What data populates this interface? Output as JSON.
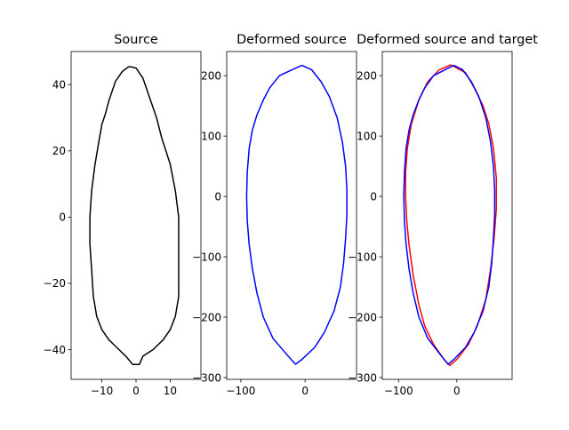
{
  "chart_data": [
    {
      "type": "line",
      "title": "Source",
      "xlim": [
        -19,
        19
      ],
      "ylim": [
        -49,
        50
      ],
      "xticks": [
        -10,
        0,
        10
      ],
      "yticks": [
        -40,
        -20,
        0,
        20,
        40
      ],
      "grid": false,
      "series": [
        {
          "color": "#000000",
          "points": [
            [
              -2,
              45.5
            ],
            [
              -4,
              44
            ],
            [
              -6,
              41
            ],
            [
              -8,
              35
            ],
            [
              -9,
              31
            ],
            [
              -10,
              28
            ],
            [
              -11,
              22
            ],
            [
              -12,
              16
            ],
            [
              -13,
              8
            ],
            [
              -13.5,
              0
            ],
            [
              -13.5,
              -8
            ],
            [
              -13,
              -16
            ],
            [
              -12.5,
              -24
            ],
            [
              -11.5,
              -30
            ],
            [
              -10,
              -34
            ],
            [
              -8,
              -37
            ],
            [
              -5,
              -40
            ],
            [
              -3,
              -42
            ],
            [
              -1,
              -44.5
            ],
            [
              1,
              -44.5
            ],
            [
              2,
              -42
            ],
            [
              5,
              -40
            ],
            [
              8,
              -37
            ],
            [
              10,
              -34
            ],
            [
              11.5,
              -30
            ],
            [
              12.5,
              -24
            ],
            [
              12.5,
              -16
            ],
            [
              12.5,
              -8
            ],
            [
              12.5,
              0
            ],
            [
              11.5,
              8
            ],
            [
              10,
              16
            ],
            [
              7.5,
              24
            ],
            [
              6,
              30
            ],
            [
              4,
              36
            ],
            [
              2,
              42
            ],
            [
              0,
              45
            ],
            [
              -2,
              45.5
            ]
          ]
        }
      ]
    },
    {
      "type": "line",
      "title": "Deformed source",
      "xlim": [
        -122,
        80
      ],
      "ylim": [
        -303,
        240
      ],
      "xticks": [
        -100,
        0
      ],
      "yticks": [
        -300,
        -200,
        -100,
        0,
        100,
        200
      ],
      "grid": false,
      "series": [
        {
          "color": "#0000ff",
          "points": [
            [
              -5,
              217
            ],
            [
              -20,
              210
            ],
            [
              -40,
              200
            ],
            [
              -55,
              180
            ],
            [
              -65,
              160
            ],
            [
              -75,
              135
            ],
            [
              -82,
              110
            ],
            [
              -87,
              80
            ],
            [
              -90,
              40
            ],
            [
              -91,
              0
            ],
            [
              -90,
              -40
            ],
            [
              -87,
              -80
            ],
            [
              -82,
              -120
            ],
            [
              -75,
              -160
            ],
            [
              -65,
              -200
            ],
            [
              -50,
              -235
            ],
            [
              -30,
              -260
            ],
            [
              -15,
              -278
            ],
            [
              -5,
              -270
            ],
            [
              15,
              -250
            ],
            [
              30,
              -225
            ],
            [
              45,
              -190
            ],
            [
              55,
              -150
            ],
            [
              60,
              -110
            ],
            [
              63,
              -70
            ],
            [
              65,
              -30
            ],
            [
              65,
              10
            ],
            [
              63,
              50
            ],
            [
              58,
              90
            ],
            [
              50,
              130
            ],
            [
              38,
              165
            ],
            [
              25,
              190
            ],
            [
              10,
              210
            ],
            [
              -5,
              217
            ]
          ]
        }
      ]
    },
    {
      "type": "line",
      "title": "Deformed source and target",
      "xlim": [
        -128,
        95
      ],
      "ylim": [
        -303,
        240
      ],
      "xticks": [
        -100,
        0
      ],
      "yticks": [
        -300,
        -200,
        -100,
        0,
        100,
        200
      ],
      "grid": false,
      "series": [
        {
          "color": "#ff0000",
          "points": [
            [
              -10,
              218
            ],
            [
              -30,
              210
            ],
            [
              -50,
              190
            ],
            [
              -65,
              160
            ],
            [
              -78,
              120
            ],
            [
              -85,
              80
            ],
            [
              -88,
              40
            ],
            [
              -88,
              0
            ],
            [
              -86,
              -40
            ],
            [
              -82,
              -80
            ],
            [
              -75,
              -130
            ],
            [
              -65,
              -180
            ],
            [
              -55,
              -215
            ],
            [
              -40,
              -245
            ],
            [
              -22,
              -270
            ],
            [
              -12,
              -280
            ],
            [
              0,
              -270
            ],
            [
              20,
              -245
            ],
            [
              35,
              -215
            ],
            [
              50,
              -170
            ],
            [
              58,
              -120
            ],
            [
              64,
              -70
            ],
            [
              68,
              -20
            ],
            [
              68,
              30
            ],
            [
              63,
              80
            ],
            [
              55,
              120
            ],
            [
              45,
              150
            ],
            [
              30,
              180
            ],
            [
              15,
              205
            ],
            [
              -10,
              218
            ]
          ]
        },
        {
          "color": "#0000ff",
          "points": [
            [
              -5,
              217
            ],
            [
              -20,
              210
            ],
            [
              -40,
              200
            ],
            [
              -55,
              180
            ],
            [
              -65,
              160
            ],
            [
              -75,
              135
            ],
            [
              -82,
              110
            ],
            [
              -87,
              80
            ],
            [
              -90,
              40
            ],
            [
              -91,
              0
            ],
            [
              -90,
              -40
            ],
            [
              -87,
              -80
            ],
            [
              -82,
              -120
            ],
            [
              -75,
              -160
            ],
            [
              -65,
              -200
            ],
            [
              -50,
              -235
            ],
            [
              -30,
              -260
            ],
            [
              -15,
              -278
            ],
            [
              -5,
              -270
            ],
            [
              15,
              -250
            ],
            [
              30,
              -225
            ],
            [
              45,
              -190
            ],
            [
              55,
              -150
            ],
            [
              60,
              -110
            ],
            [
              63,
              -70
            ],
            [
              65,
              -30
            ],
            [
              65,
              10
            ],
            [
              63,
              50
            ],
            [
              58,
              90
            ],
            [
              50,
              130
            ],
            [
              38,
              165
            ],
            [
              25,
              190
            ],
            [
              10,
              210
            ],
            [
              -5,
              217
            ]
          ]
        }
      ]
    }
  ]
}
